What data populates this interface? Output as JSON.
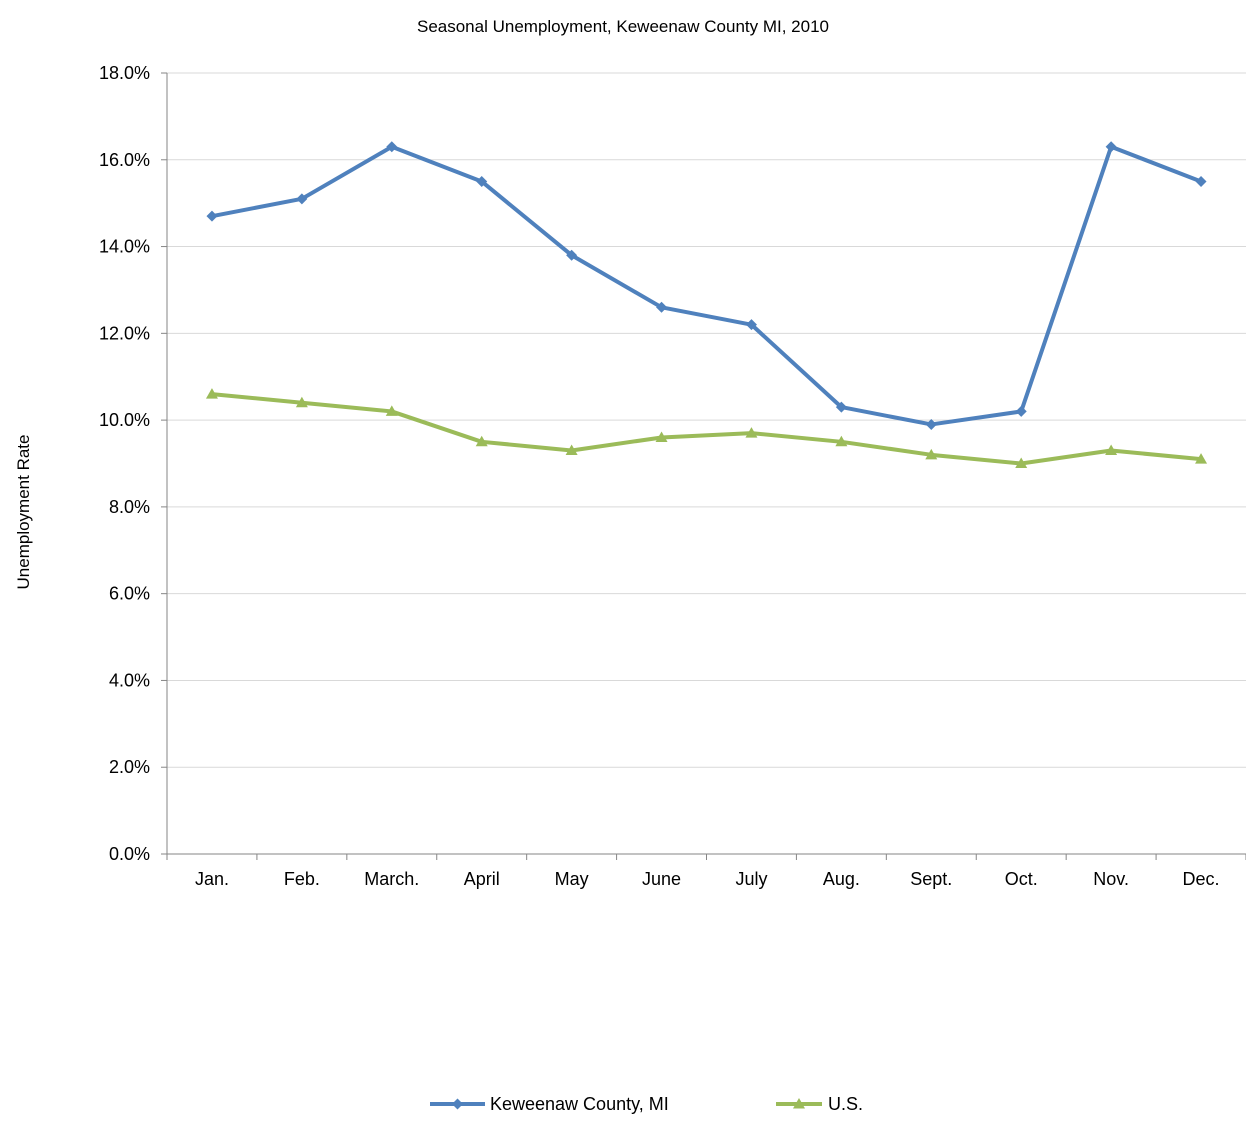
{
  "chart_data": {
    "type": "line",
    "title": "Seasonal Unemployment, Keweenaw County MI, 2010",
    "xlabel": "",
    "ylabel": "Unemployment Rate",
    "ylim": [
      0,
      18
    ],
    "y_ticks": [
      "0.0%",
      "2.0%",
      "4.0%",
      "6.0%",
      "8.0%",
      "10.0%",
      "12.0%",
      "14.0%",
      "16.0%",
      "18.0%"
    ],
    "grid": true,
    "legend_position": "bottom",
    "categories": [
      "Jan.",
      "Feb.",
      "March.",
      "April",
      "May",
      "June",
      "July",
      "Aug.",
      "Sept.",
      "Oct.",
      "Nov.",
      "Dec."
    ],
    "series": [
      {
        "name": "Keweenaw County, MI",
        "color": "#4f81bd",
        "marker": "diamond",
        "values": [
          14.7,
          15.1,
          16.3,
          15.5,
          13.8,
          12.6,
          12.2,
          10.3,
          9.9,
          10.2,
          16.3,
          15.5
        ]
      },
      {
        "name": "U.S.",
        "color": "#9bbb59",
        "marker": "triangle",
        "values": [
          10.6,
          10.4,
          10.2,
          9.5,
          9.3,
          9.6,
          9.7,
          9.5,
          9.2,
          9.0,
          9.3,
          9.1
        ]
      }
    ]
  }
}
